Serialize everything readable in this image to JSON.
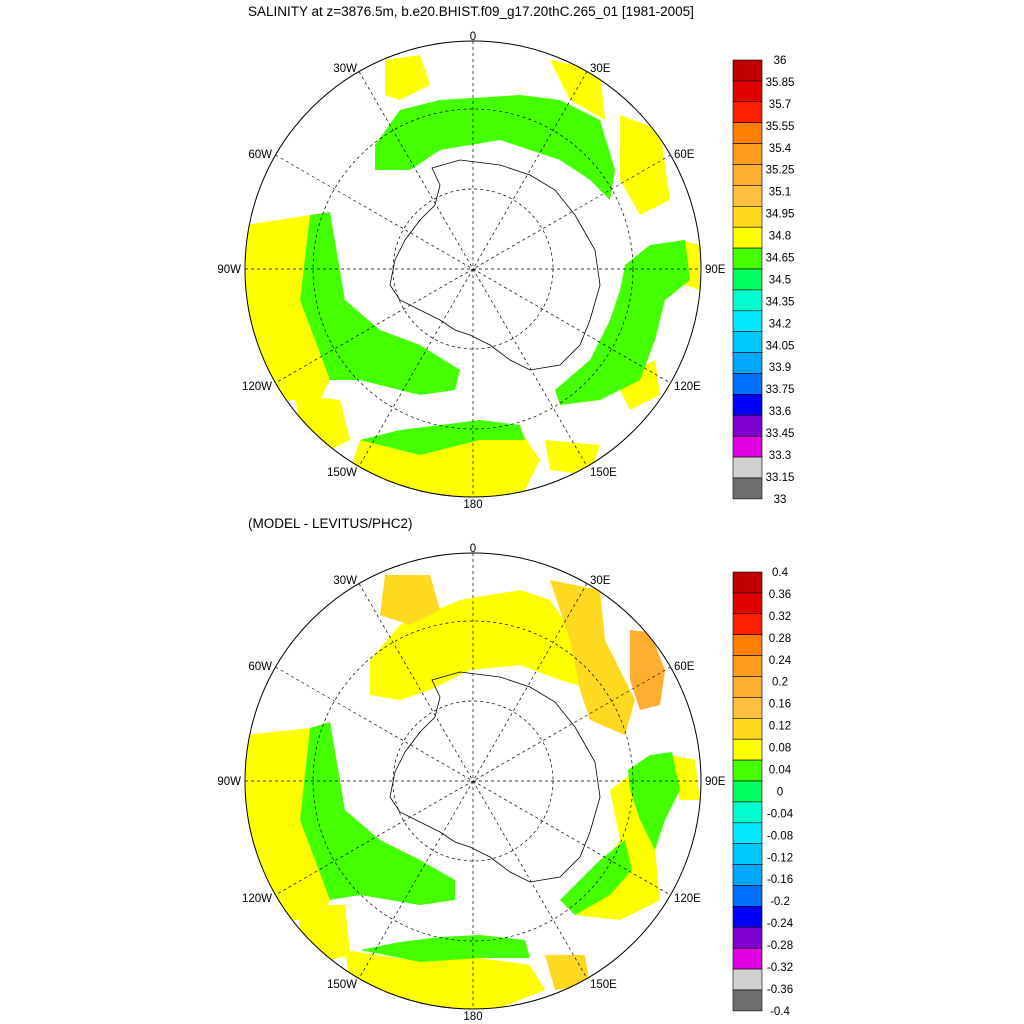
{
  "top_panel": {
    "title": "SALINITY at z=3876.5m, b.e20.BHIST.f09_g17.20thC.265_01 [1981-2005]",
    "lon_labels": {
      "top": "0",
      "top_right": "30E",
      "right_upper": "60E",
      "right": "90E",
      "right_lower": "120E",
      "bottom_right": "150E",
      "bottom": "180",
      "bottom_left": "150W",
      "left_lower": "120W",
      "left": "90W",
      "left_upper": "60W",
      "top_left": "30W"
    },
    "colorbar": {
      "labels": [
        "36",
        "35.85",
        "35.7",
        "35.55",
        "35.4",
        "35.25",
        "35.1",
        "34.95",
        "34.8",
        "34.65",
        "34.5",
        "34.35",
        "34.2",
        "34.05",
        "33.9",
        "33.75",
        "33.6",
        "33.45",
        "33.3",
        "33.15",
        "33"
      ],
      "colors": [
        "#c00000",
        "#e00000",
        "#ff2000",
        "#ff8000",
        "#ff9a20",
        "#ffae30",
        "#ffc040",
        "#ffd820",
        "#ffff00",
        "#44ff00",
        "#00ff60",
        "#00ffd0",
        "#00e8ff",
        "#00c8ff",
        "#00a8ff",
        "#0070ff",
        "#0000ff",
        "#8000d0",
        "#e000e0",
        "#d0d0d0",
        "#707070"
      ]
    }
  },
  "bottom_panel": {
    "title": "(MODEL - LEVITUS/PHC2)",
    "lon_labels": {
      "top": "0",
      "top_right": "30E",
      "right_upper": "60E",
      "right": "90E",
      "right_lower": "120E",
      "bottom_right": "150E",
      "bottom": "180",
      "bottom_left": "150W",
      "left_lower": "120W",
      "left": "90W",
      "left_upper": "60W",
      "top_left": "30W"
    },
    "colorbar": {
      "labels": [
        "0.4",
        "0.36",
        "0.32",
        "0.28",
        "0.24",
        "0.2",
        "0.16",
        "0.12",
        "0.08",
        "0.04",
        "0",
        "-0.04",
        "-0.08",
        "-0.12",
        "-0.16",
        "-0.2",
        "-0.24",
        "-0.28",
        "-0.32",
        "-0.36",
        "-0.4"
      ],
      "colors": [
        "#c00000",
        "#e00000",
        "#ff2000",
        "#ff8000",
        "#ff9a20",
        "#ffae30",
        "#ffc040",
        "#ffd820",
        "#ffff00",
        "#44ff00",
        "#00ff60",
        "#00ffd0",
        "#00e8ff",
        "#00c8ff",
        "#00a8ff",
        "#0070ff",
        "#0000ff",
        "#8000d0",
        "#e000e0",
        "#d0d0d0",
        "#707070"
      ]
    }
  }
}
